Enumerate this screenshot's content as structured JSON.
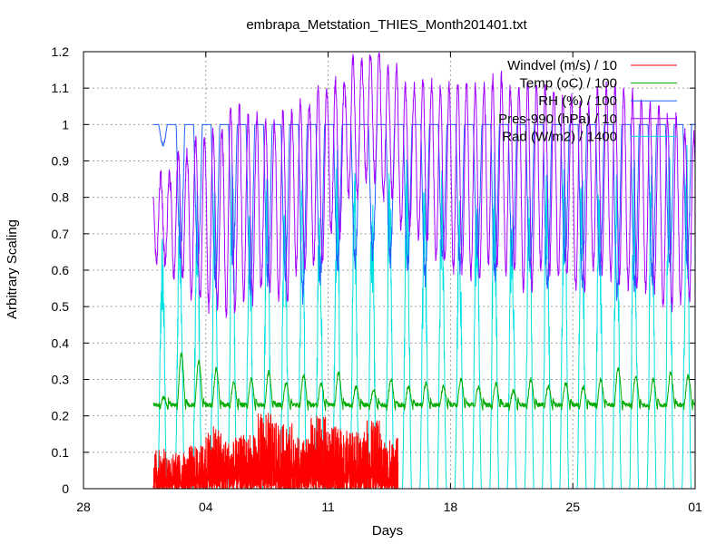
{
  "chart_data": {
    "type": "line",
    "title": "embrapa_Metstation_THIES_Month201401.txt",
    "xlabel": "Days",
    "ylabel": "Arbitrary Scaling",
    "xlim": [
      "2013-12-28",
      "2014-02-01"
    ],
    "ylim": [
      0,
      1.2
    ],
    "x_ticks": [
      "28",
      "04",
      "11",
      "18",
      "25",
      "01"
    ],
    "y_ticks": [
      "0",
      "0.1",
      "0.2",
      "0.3",
      "0.4",
      "0.5",
      "0.6",
      "0.7",
      "0.8",
      "0.9",
      "1",
      "1.1",
      "1.2"
    ],
    "grid": true,
    "legend_position": "top-right",
    "series": [
      {
        "name": "Windvel (m/s) / 10",
        "color": "#ff0000",
        "x_range": [
          "2014-01-01",
          "2014-01-15"
        ],
        "note_values": "noisy, mostly 0.02-0.12, spikes to 0.21",
        "daily_peak_approx": [
          0.11,
          0.1,
          0.12,
          0.17,
          0.14,
          0.15,
          0.21,
          0.18,
          0.14,
          0.2,
          0.17,
          0.16,
          0.19,
          0.14
        ]
      },
      {
        "name": "Temp (oC) / 100",
        "color": "#00aa00",
        "x_range": [
          "2014-01-01",
          "2014-01-31"
        ],
        "daily_min_approx": 0.22,
        "daily_peak_approx": [
          0.25,
          0.37,
          0.35,
          0.33,
          0.29,
          0.3,
          0.32,
          0.29,
          0.31,
          0.29,
          0.32,
          0.28,
          0.27,
          0.3,
          0.28,
          0.29,
          0.28,
          0.3,
          0.28,
          0.29,
          0.27,
          0.3,
          0.28,
          0.29,
          0.28,
          0.3,
          0.33,
          0.31,
          0.3,
          0.32,
          0.31
        ]
      },
      {
        "name": "RH (%) / 100",
        "color": "#2060ff",
        "x_range": [
          "2014-01-01",
          "2014-01-31"
        ],
        "daily_max_approx": 1.0,
        "daily_min_approx": [
          0.94,
          0.62,
          0.58,
          0.55,
          0.6,
          0.52,
          0.55,
          0.57,
          0.5,
          0.55,
          0.58,
          0.6,
          0.62,
          0.6,
          0.58,
          0.55,
          0.6,
          0.58,
          0.62,
          0.55,
          0.6,
          0.58,
          0.52,
          0.6,
          0.55,
          0.58,
          0.5,
          0.52,
          0.55,
          0.58,
          0.6
        ]
      },
      {
        "name": "Pres-990 (hPa) / 10",
        "color": "#a000ff",
        "x_range": [
          "2014-01-01",
          "2014-01-31"
        ],
        "daily_high_approx": [
          0.86,
          0.92,
          0.96,
          0.98,
          1.05,
          1.02,
          1.0,
          1.04,
          1.06,
          1.1,
          1.12,
          1.18,
          1.2,
          1.15,
          1.1,
          1.12,
          1.1,
          1.12,
          1.1,
          1.13,
          1.1,
          1.12,
          1.1,
          1.08,
          1.05,
          1.1,
          1.1,
          1.08,
          1.05,
          1.02,
          0.98
        ],
        "daily_low_approx": [
          0.62,
          0.58,
          0.52,
          0.5,
          0.48,
          0.52,
          0.55,
          0.52,
          0.6,
          0.62,
          0.7,
          0.8,
          0.85,
          0.8,
          0.72,
          0.68,
          0.62,
          0.6,
          0.58,
          0.62,
          0.6,
          0.55,
          0.6,
          0.58,
          0.55,
          0.6,
          0.58,
          0.55,
          0.55,
          0.5,
          0.52
        ]
      },
      {
        "name": "Rad (W/m2) / 1400",
        "color": "#00e0e0",
        "x_range": [
          "2014-01-01",
          "2014-01-31"
        ],
        "daily_peak_approx": [
          0.72,
          0.88,
          0.82,
          0.85,
          0.92,
          0.78,
          0.9,
          0.88,
          0.86,
          0.85,
          0.95,
          0.9,
          0.84,
          0.92,
          0.95,
          0.88,
          0.9,
          0.8,
          0.92,
          0.95,
          0.88,
          0.92,
          0.96,
          0.94,
          0.95,
          0.9,
          0.92,
          0.95,
          0.96,
          0.97,
          0.98
        ],
        "night_value": 0.0
      }
    ]
  }
}
